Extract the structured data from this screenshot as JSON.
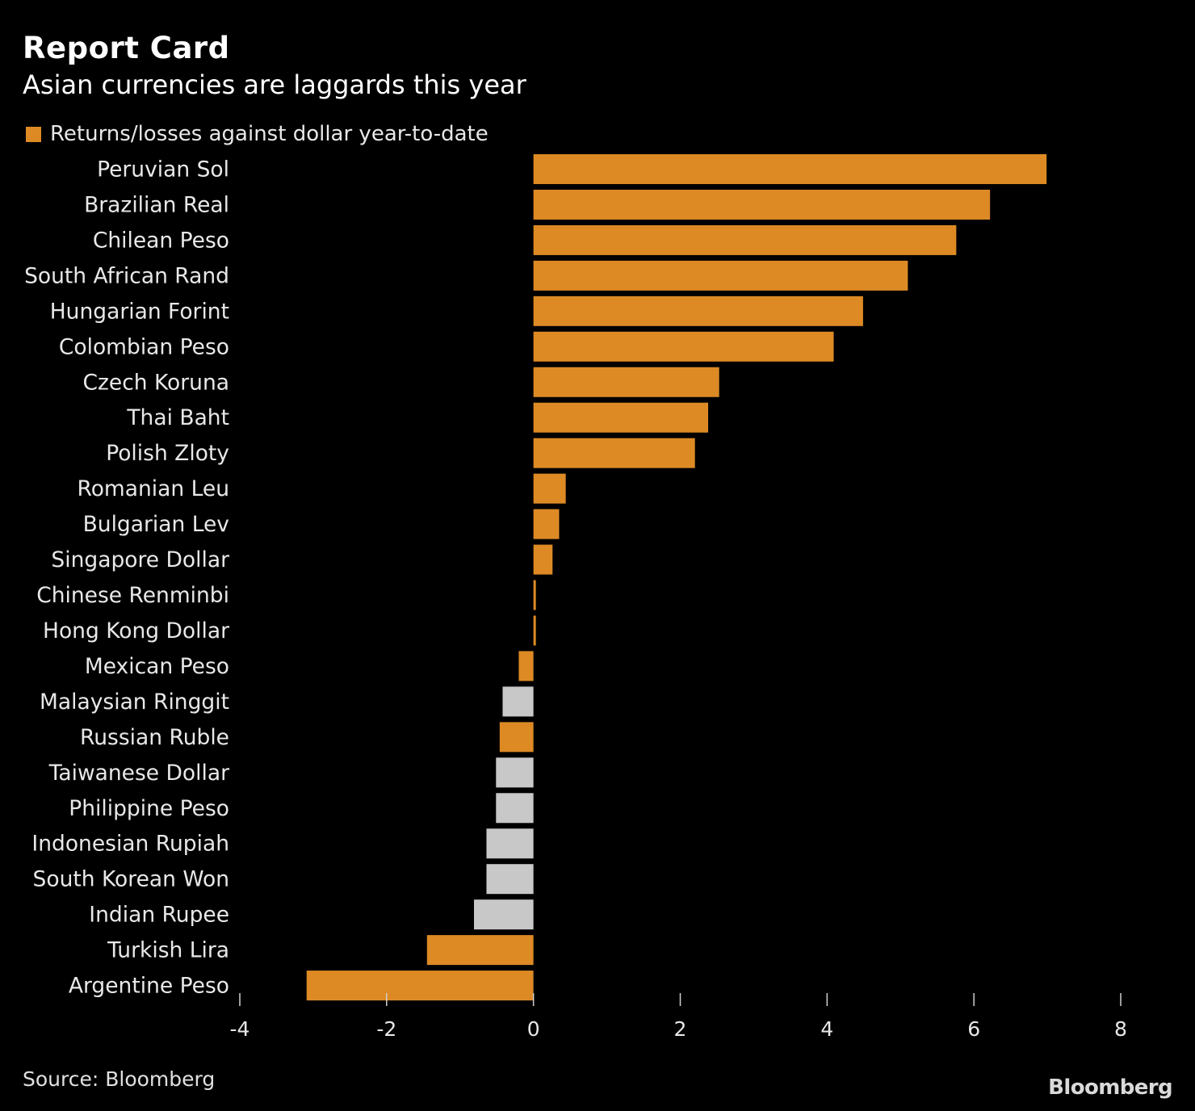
{
  "title": "Report Card",
  "subtitle": "Asian currencies are laggards this year",
  "legend_label": "Returns/losses against dollar year-to-date",
  "source": "Source: Bloomberg",
  "brand": "Bloomberg",
  "colors": {
    "background": "#000000",
    "non_asian": "#dd8a25",
    "asian": "#c8c8c8",
    "text": "#e8e8e8"
  },
  "chart_data": {
    "type": "bar",
    "orientation": "horizontal",
    "title": "Report Card",
    "subtitle": "Asian currencies are laggards this year",
    "legend": [
      "Returns/losses against dollar year-to-date"
    ],
    "xlim": [
      -4,
      8
    ],
    "xticks": [
      -4,
      -2,
      0,
      2,
      4,
      6,
      8
    ],
    "xlabel": "",
    "ylabel": "",
    "grid": false,
    "categories": [
      "Peruvian Sol",
      "Brazilian Real",
      "Chilean Peso",
      "South African Rand",
      "Hungarian Forint",
      "Colombian Peso",
      "Czech Koruna",
      "Thai Baht",
      "Polish Zloty",
      "Romanian Leu",
      "Bulgarian Lev",
      "Singapore Dollar",
      "Chinese Renminbi",
      "Hong Kong Dollar",
      "Mexican Peso",
      "Malaysian Ringgit",
      "Russian Ruble",
      "Taiwanese Dollar",
      "Philippine Peso",
      "Indonesian Rupiah",
      "South Korean Won",
      "Indian Rupee",
      "Turkish Lira",
      "Argentine Peso"
    ],
    "values": [
      6.99,
      6.22,
      5.76,
      5.1,
      4.49,
      4.09,
      2.53,
      2.38,
      2.2,
      0.44,
      0.35,
      0.26,
      0.03,
      0.03,
      -0.2,
      -0.42,
      -0.46,
      -0.51,
      -0.51,
      -0.64,
      -0.64,
      -0.81,
      -1.45,
      -3.09
    ],
    "highlight_asian": [
      false,
      false,
      false,
      false,
      false,
      false,
      false,
      false,
      false,
      false,
      false,
      false,
      false,
      false,
      false,
      true,
      false,
      true,
      true,
      true,
      true,
      true,
      false,
      false
    ]
  }
}
